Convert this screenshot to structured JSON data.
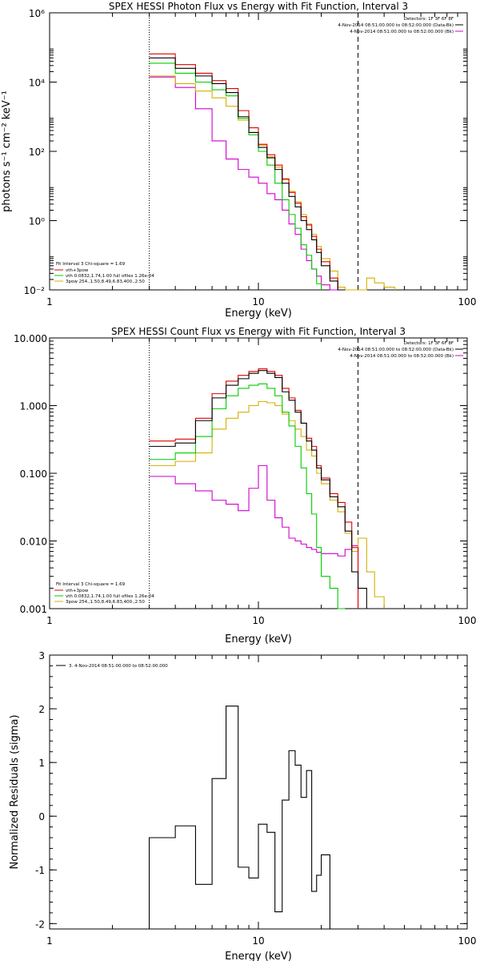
{
  "chart_data": [
    {
      "type": "line",
      "title": "SPEX HESSI Photon Flux vs Energy with Fit Function, Interval 3",
      "xlabel": "Energy (keV)",
      "ylabel": "photons s⁻¹ cm⁻² keV⁻¹",
      "xscale": "log",
      "yscale": "log",
      "xlim": [
        1,
        100
      ],
      "ylim": [
        0.01,
        1000000
      ],
      "x_ticks": [
        "1",
        "10",
        "100"
      ],
      "y_ticks": [
        "10⁻²",
        "10⁰",
        "10²",
        "10⁴",
        "10⁶"
      ],
      "header_lines": [
        "Detectors: 1F 3F 6F 8F",
        "4-Nov-2014 08:51:00.000 to 08:52:00.000 (Data-Bk)",
        "4-Nov-2014 08:51:00.000 to 08:52:00.000 (Bk)"
      ],
      "header_colors": [
        "#000000",
        "#000000",
        "#d000d0"
      ],
      "legend_lines": [
        "Fit Interval 3   Chi-square = 1.69",
        "vth+3pow",
        "vth 0.0832,1.74,1.00  full ofiles 1.26e-04",
        "3pow 254.,1.50,8.49,6.83,400.,2.50"
      ],
      "legend_colors": [
        "#000000",
        "#e00000",
        "#00cc00",
        "#d4b000"
      ],
      "vlines": {
        "dotted": 3,
        "dashed": 30
      },
      "edges": [
        3,
        4,
        5,
        6,
        7,
        8,
        9,
        10,
        11,
        12,
        13,
        14,
        15,
        16,
        17,
        18,
        19,
        20,
        22,
        24,
        26,
        28,
        30,
        33,
        36,
        40,
        45
      ],
      "series": [
        {
          "name": "Data-Bk",
          "color": "#000000",
          "values": [
            50000,
            25000,
            15000,
            9000,
            5000,
            1000,
            350,
            130,
            65,
            30,
            12,
            5,
            2.5,
            1,
            0.55,
            0.28,
            0.12,
            0.05,
            0.018,
            0.006,
            null,
            null,
            null,
            null,
            null,
            null
          ]
        },
        {
          "name": "vth+3pow",
          "color": "#e00000",
          "values": [
            65000,
            32000,
            18000,
            11000,
            6500,
            1500,
            480,
            160,
            80,
            40,
            16,
            6.5,
            3.2,
            1.3,
            0.75,
            0.35,
            0.15,
            0.065,
            0.022,
            0.0085,
            null,
            null,
            null,
            null,
            null,
            null
          ]
        },
        {
          "name": "vth",
          "color": "#00cc00",
          "values": [
            35000,
            18000,
            10000,
            6000,
            4000,
            900,
            300,
            100,
            40,
            12,
            4,
            1.5,
            0.6,
            0.2,
            0.1,
            0.04,
            0.015,
            null,
            null,
            null,
            null,
            null,
            null,
            null,
            null,
            null
          ]
        },
        {
          "name": "3pow",
          "color": "#d4b000",
          "values": [
            15000,
            9000,
            5500,
            3500,
            2000,
            800,
            350,
            150,
            70,
            35,
            15,
            7,
            3.5,
            1.5,
            0.8,
            0.4,
            0.18,
            0.08,
            0.035,
            0.012,
            0.0065,
            0.005,
            0.0035,
            0.022,
            0.016,
            0.012
          ]
        },
        {
          "name": "Bk",
          "color": "#d000d0",
          "values": [
            14000,
            7000,
            1700,
            200,
            60,
            30,
            18,
            12,
            6,
            4,
            2,
            0.8,
            0.4,
            0.15,
            0.07,
            0.04,
            0.025,
            0.014,
            0.01,
            0.008,
            0.006,
            0.005,
            null,
            null,
            null,
            null
          ]
        }
      ]
    },
    {
      "type": "line",
      "title": "SPEX HESSI Count Flux vs Energy with Fit Function, Interval 3",
      "xlabel": "Energy (keV)",
      "ylabel": "",
      "xscale": "log",
      "yscale": "log",
      "xlim": [
        1,
        100
      ],
      "ylim": [
        0.001,
        10
      ],
      "x_ticks": [
        "1",
        "10",
        "100"
      ],
      "y_ticks": [
        "0.001",
        "0.010",
        "0.100",
        "1.000",
        "10.000"
      ],
      "header_lines": [
        "Detectors: 1F 3F 6F 8F",
        "4-Nov-2014 08:51:00.000 to 08:52:00.000 (Data-Bk)",
        "4-Nov-2014 08:51:00.000 to 08:52:00.000 (Bk)"
      ],
      "header_colors": [
        "#000000",
        "#000000",
        "#d000d0"
      ],
      "legend_lines": [
        "Fit Interval 3   Chi-square = 1.69",
        "vth+3pow",
        "vth 0.0832,1.74,1.00  full ofiles 1.26e-04",
        "3pow 254.,1.50,8.49,6.83,400.,2.50"
      ],
      "legend_colors": [
        "#000000",
        "#e00000",
        "#00cc00",
        "#d4b000"
      ],
      "vlines": {
        "dotted": 3,
        "dashed": 30
      },
      "edges": [
        3,
        4,
        5,
        6,
        7,
        8,
        9,
        10,
        11,
        12,
        13,
        14,
        15,
        16,
        17,
        18,
        19,
        20,
        22,
        24,
        26,
        28,
        30,
        33,
        36,
        40,
        45
      ],
      "series": [
        {
          "name": "Data-Bk",
          "color": "#000000",
          "values": [
            0.25,
            0.28,
            0.6,
            1.3,
            2,
            2.5,
            3,
            3.3,
            3,
            2.6,
            1.6,
            1.2,
            0.8,
            0.55,
            0.3,
            0.22,
            0.12,
            0.08,
            0.045,
            0.032,
            0.014,
            0.0035,
            0.002,
            null,
            null,
            null
          ]
        },
        {
          "name": "vth+3pow",
          "color": "#e00000",
          "values": [
            0.3,
            0.32,
            0.65,
            1.5,
            2.3,
            2.8,
            3.2,
            3.5,
            3.2,
            2.8,
            1.8,
            1.3,
            0.85,
            0.55,
            0.33,
            0.25,
            0.13,
            0.085,
            0.05,
            0.037,
            0.019,
            0.008,
            null,
            null,
            null,
            null
          ]
        },
        {
          "name": "vth",
          "color": "#00cc00",
          "values": [
            0.16,
            0.2,
            0.35,
            0.9,
            1.4,
            1.8,
            2,
            2.1,
            1.8,
            1.4,
            0.8,
            0.5,
            0.25,
            0.12,
            0.05,
            0.025,
            0.008,
            0.003,
            0.002,
            0.001,
            null,
            null,
            null,
            null,
            null,
            null
          ]
        },
        {
          "name": "3pow",
          "color": "#d4b000",
          "values": [
            0.13,
            0.15,
            0.2,
            0.45,
            0.65,
            0.8,
            1,
            1.15,
            1.1,
            1,
            0.75,
            0.6,
            0.45,
            0.35,
            0.22,
            0.18,
            0.1,
            0.07,
            0.04,
            0.027,
            0.013,
            0.007,
            0.011,
            0.0035,
            0.0015,
            null
          ]
        },
        {
          "name": "Bk",
          "color": "#d000d0",
          "values": [
            0.09,
            0.07,
            0.055,
            0.04,
            0.035,
            0.028,
            0.06,
            0.13,
            0.04,
            0.022,
            0.016,
            0.011,
            0.01,
            0.009,
            0.008,
            0.0075,
            0.0068,
            0.0065,
            0.0065,
            0.006,
            0.0075,
            0.0085,
            null,
            null,
            null,
            null
          ]
        }
      ]
    },
    {
      "type": "line",
      "title": "",
      "xlabel": "Energy (keV)",
      "ylabel": "Normalized Residuals (sigma)",
      "xscale": "log",
      "yscale": "linear",
      "xlim": [
        1,
        100
      ],
      "ylim": [
        -2.1,
        3
      ],
      "x_ticks": [
        "1",
        "10",
        "100"
      ],
      "y_ticks": [
        "-2",
        "-1",
        "0",
        "1",
        "2",
        "3"
      ],
      "legend_lines": [
        "3.  4-Nov-2014 08:51:00.000 to 08:52:00.000"
      ],
      "legend_colors": [
        "#000000"
      ],
      "edges": [
        3,
        4,
        5,
        6,
        7,
        8,
        9,
        10,
        11,
        12,
        13,
        14,
        15,
        16,
        17,
        18,
        19,
        20,
        22,
        24,
        26,
        28,
        30
      ],
      "series": [
        {
          "name": "",
          "color": "#000000",
          "values": [
            -0.4,
            -0.18,
            -1.27,
            0.7,
            2.05,
            -0.95,
            -1.15,
            -0.15,
            -0.3,
            -1.78,
            0.3,
            1.22,
            0.95,
            0.35,
            0.85,
            -1.4,
            -1.1,
            -0.72
          ]
        }
      ]
    }
  ]
}
